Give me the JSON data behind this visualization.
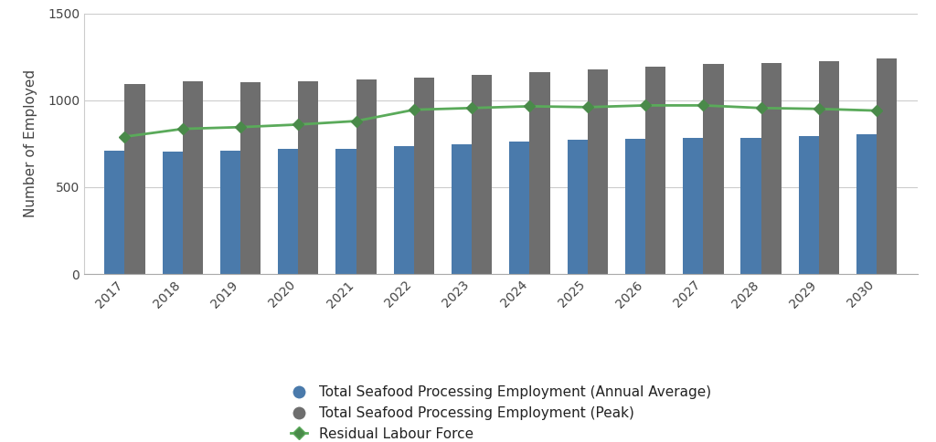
{
  "years": [
    2017,
    2018,
    2019,
    2020,
    2021,
    2022,
    2023,
    2024,
    2025,
    2026,
    2027,
    2028,
    2029,
    2030
  ],
  "annual_avg": [
    710,
    705,
    708,
    720,
    720,
    735,
    748,
    760,
    770,
    780,
    785,
    785,
    795,
    805
  ],
  "peak": [
    1095,
    1110,
    1105,
    1110,
    1120,
    1130,
    1145,
    1160,
    1175,
    1195,
    1210,
    1215,
    1225,
    1240
  ],
  "residual": [
    790,
    835,
    845,
    860,
    880,
    945,
    955,
    965,
    960,
    970,
    970,
    955,
    950,
    940
  ],
  "bar_color_annual": "#4a7aab",
  "bar_color_peak": "#6e6e6e",
  "line_color": "#5aaa5a",
  "marker_color": "#4a8a4a",
  "background_color": "#ffffff",
  "ylabel": "Number of Employed",
  "ylim": [
    0,
    1500
  ],
  "yticks": [
    0,
    500,
    1000,
    1500
  ],
  "legend_annual": "Total Seafood Processing Employment (Annual Average)",
  "legend_peak": "Total Seafood Processing Employment (Peak)",
  "legend_residual": "Residual Labour Force",
  "bar_width": 0.35,
  "figsize": [
    10.24,
    4.84
  ],
  "dpi": 100
}
